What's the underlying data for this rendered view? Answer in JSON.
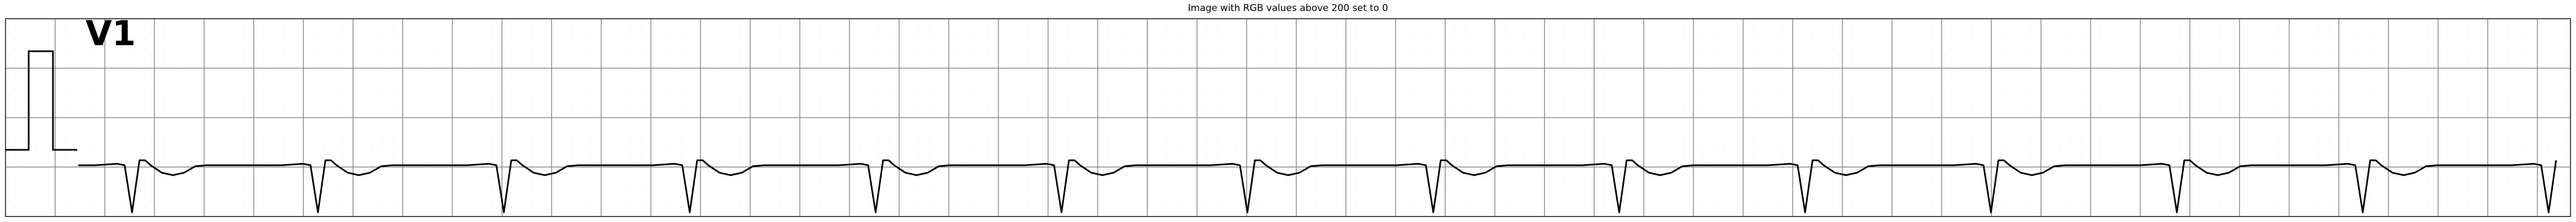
{
  "chart_data": {
    "type": "line",
    "title": "Image with RGB values above 200 set to 0",
    "lead_label": "V1",
    "grid": true,
    "grid_color": "#888888",
    "minor_grid": "dotted",
    "trace_color": "#000000",
    "calibration_pulse": true,
    "beat_count": 14,
    "signal": {
      "description_units": "normalized amplitude (baseline 0)",
      "beat_template": [
        [
          0.0,
          0.0
        ],
        [
          0.08,
          0.02
        ],
        [
          0.12,
          0.03
        ],
        [
          0.16,
          0.0
        ],
        [
          0.2,
          -0.95
        ],
        [
          0.24,
          0.1
        ],
        [
          0.27,
          0.1
        ],
        [
          0.3,
          0.0
        ],
        [
          0.36,
          -0.15
        ],
        [
          0.42,
          -0.2
        ],
        [
          0.48,
          -0.15
        ],
        [
          0.54,
          -0.02
        ],
        [
          0.6,
          0.0
        ],
        [
          1.0,
          0.0
        ]
      ]
    }
  }
}
